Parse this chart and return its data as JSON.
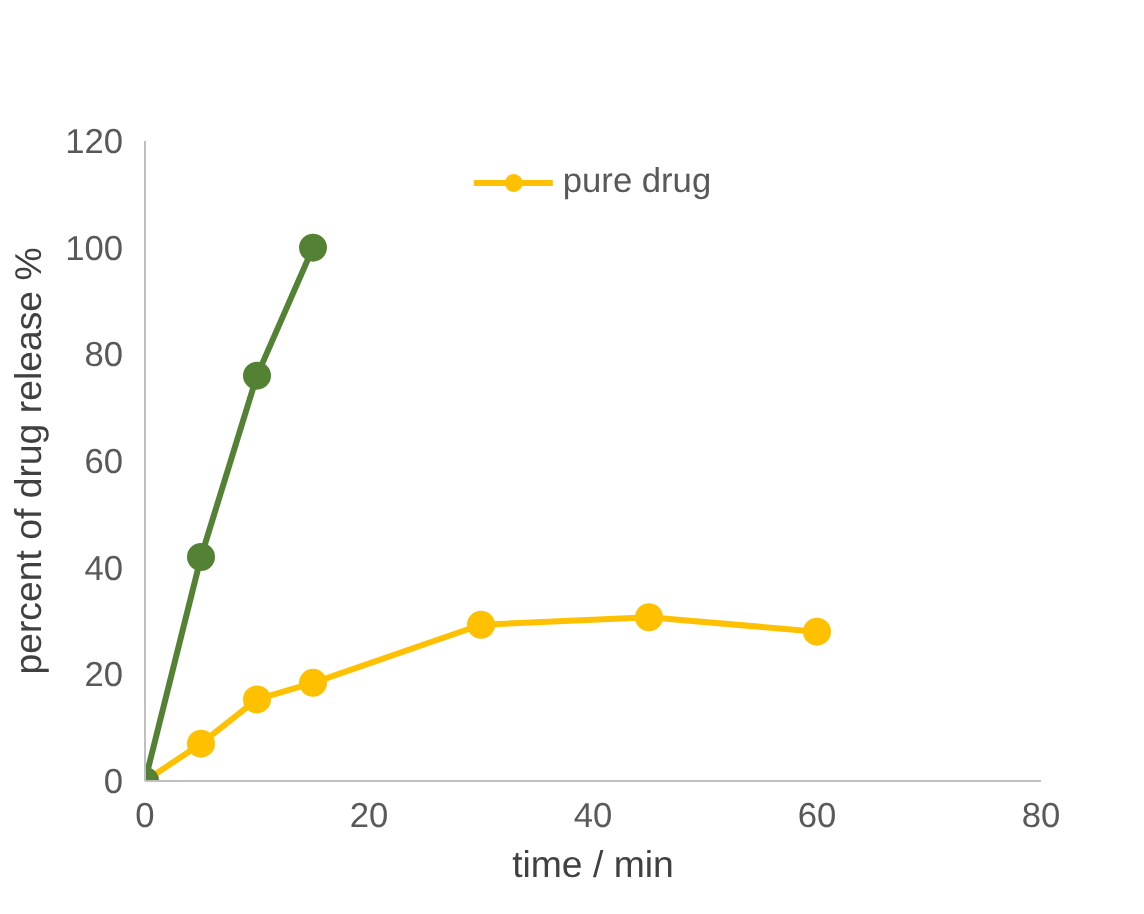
{
  "chart_data": {
    "type": "line",
    "xlabel": "time / min",
    "ylabel": "percent of drug release %",
    "xlim": [
      0,
      80
    ],
    "xticks": [
      0,
      20,
      40,
      60,
      80
    ],
    "ylim": [
      0,
      120
    ],
    "yticks": [
      0,
      20,
      40,
      60,
      80,
      100,
      120
    ],
    "grid": false,
    "legend": "top",
    "marker": "circle",
    "line_style": "solid",
    "series": [
      {
        "name": "pure drug",
        "color": "#ffc000",
        "x": [
          0,
          5,
          10,
          15,
          30,
          45,
          60
        ],
        "values": [
          0,
          7,
          15.3,
          18.4,
          29.3,
          30.7,
          28
        ]
      },
      {
        "color": "#548235",
        "x": [
          0,
          5,
          10,
          15
        ],
        "values": [
          0,
          42,
          76,
          100
        ]
      }
    ]
  }
}
